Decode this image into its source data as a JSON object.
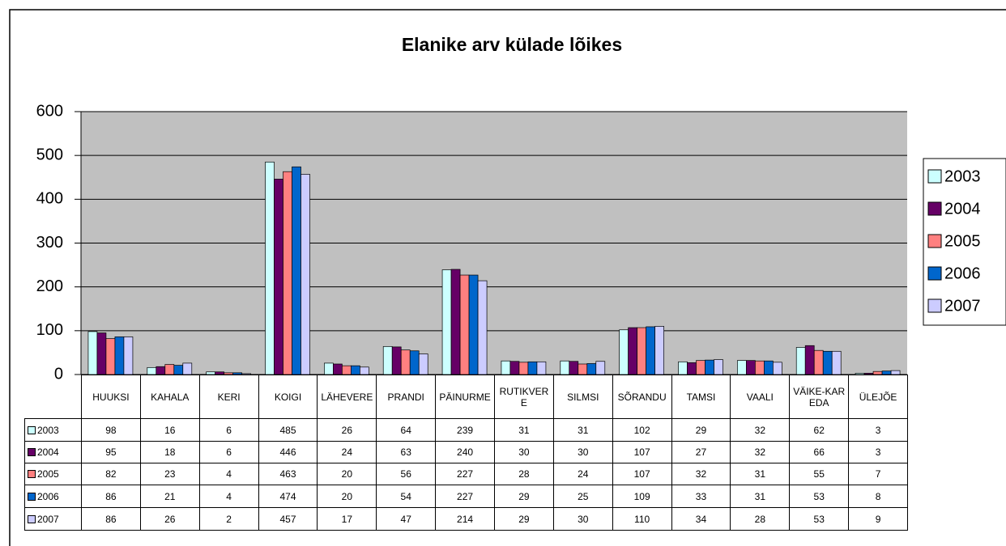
{
  "chart_data": {
    "type": "bar",
    "title": "Elanike arv külade lõikes",
    "categories": [
      "HUUKSI",
      "KAHALA",
      "KERI",
      "KOIGI",
      "LÄHEVERE",
      "PRANDI",
      "PÄINURME",
      "RUTIKVERE",
      "SILMSI",
      "SÕRANDU",
      "TAMSI",
      "VAALI",
      "VÄIKE-KAREDA",
      "ÜLEJÕE"
    ],
    "series": [
      {
        "name": "2003",
        "color": "#ccffff",
        "values": [
          98,
          16,
          6,
          485,
          26,
          64,
          239,
          31,
          31,
          102,
          29,
          32,
          62,
          3
        ]
      },
      {
        "name": "2004",
        "color": "#660066",
        "values": [
          95,
          18,
          6,
          446,
          24,
          63,
          240,
          30,
          30,
          107,
          27,
          32,
          66,
          3
        ]
      },
      {
        "name": "2005",
        "color": "#ff8080",
        "values": [
          82,
          23,
          4,
          463,
          20,
          56,
          227,
          28,
          24,
          107,
          32,
          31,
          55,
          7
        ]
      },
      {
        "name": "2006",
        "color": "#0066cc",
        "values": [
          86,
          21,
          4,
          474,
          20,
          54,
          227,
          29,
          25,
          109,
          33,
          31,
          53,
          8
        ]
      },
      {
        "name": "2007",
        "color": "#ccccff",
        "values": [
          86,
          26,
          2,
          457,
          17,
          47,
          214,
          29,
          30,
          110,
          34,
          28,
          53,
          9
        ]
      }
    ],
    "ylim": [
      0,
      600
    ],
    "yticks": [
      0,
      100,
      200,
      300,
      400,
      500,
      600
    ],
    "grid": true,
    "legend": "right"
  }
}
